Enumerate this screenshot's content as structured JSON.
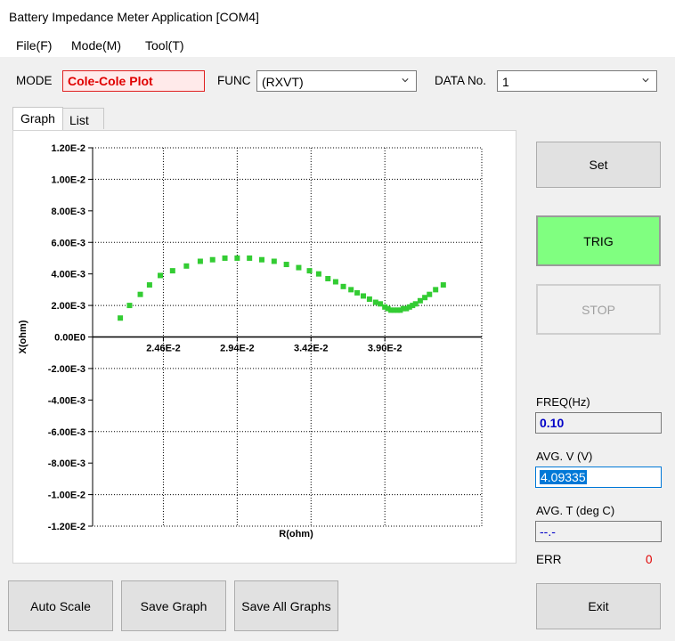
{
  "window": {
    "title": "Battery Impedance Meter Application [COM4]"
  },
  "menu": {
    "items": [
      "File(F)",
      "Mode(M)",
      "Tool(T)"
    ]
  },
  "toolbar": {
    "mode_label": "MODE",
    "mode_value": "Cole-Cole Plot",
    "func_label": "FUNC",
    "func_value": "(RXVT)",
    "data_no_label": "DATA No.",
    "data_no_value": "1"
  },
  "tabs": {
    "graph": "Graph",
    "list": "List"
  },
  "buttons": {
    "set": "Set",
    "trig": "TRIG",
    "stop": "STOP",
    "auto_scale": "Auto Scale",
    "save_graph": "Save Graph",
    "save_all_graphs": "Save All Graphs",
    "exit": "Exit"
  },
  "readouts": {
    "freq_label": "FREQ(Hz)",
    "freq_value": "0.10",
    "avg_v_label": "AVG. V (V)",
    "avg_v_value": "4.09335",
    "avg_t_label": "AVG. T (deg C)",
    "avg_t_value": "--.-",
    "err_label": "ERR",
    "err_value": "0"
  },
  "colors": {
    "trig": "#80ff80",
    "points": "#33cc33",
    "mode_text": "#e00000",
    "err_value": "#e00000"
  },
  "chart_data": {
    "type": "scatter",
    "xlabel": "R(ohm)",
    "ylabel": "X(ohm)",
    "xlim": [
      0.02,
      0.0453
    ],
    "ylim": [
      -0.012,
      0.012
    ],
    "grid": true,
    "x_ticks": [
      0.0246,
      0.0294,
      0.0342,
      0.039
    ],
    "x_tick_labels": [
      "2.46E-2",
      "2.94E-2",
      "3.42E-2",
      "3.90E-2"
    ],
    "y_ticks": [
      0.012,
      0.01,
      0.008,
      0.006,
      0.004,
      0.002,
      0.0,
      -0.002,
      -0.004,
      -0.006,
      -0.008,
      -0.01,
      -0.012
    ],
    "y_tick_labels": [
      "1.20E-2",
      "1.00E-2",
      "8.00E-3",
      "6.00E-3",
      "4.00E-3",
      "2.00E-3",
      "0.00E0",
      "-2.00E-3",
      "-4.00E-3",
      "-6.00E-3",
      "-8.00E-3",
      "-1.00E-2",
      "-1.20E-2"
    ],
    "series": [
      {
        "x": [
          0.0218,
          0.0224,
          0.0231,
          0.0237,
          0.0244,
          0.0252,
          0.0261,
          0.027,
          0.0278,
          0.0286,
          0.0294,
          0.0302,
          0.031,
          0.0318,
          0.0326,
          0.0334,
          0.0341,
          0.0347,
          0.0353,
          0.0358,
          0.0363,
          0.0368,
          0.0372,
          0.0376,
          0.038,
          0.0384,
          0.0387,
          0.039,
          0.0392,
          0.0394,
          0.0396,
          0.0398,
          0.04,
          0.0402,
          0.0404,
          0.0406,
          0.0408,
          0.041,
          0.0413,
          0.0416,
          0.0419,
          0.0423,
          0.0428
        ],
        "y": [
          0.0012,
          0.002,
          0.0027,
          0.0033,
          0.0039,
          0.0042,
          0.0045,
          0.0048,
          0.0049,
          0.005,
          0.005,
          0.005,
          0.0049,
          0.0048,
          0.0046,
          0.0044,
          0.0042,
          0.004,
          0.0037,
          0.0035,
          0.0032,
          0.003,
          0.0028,
          0.0026,
          0.0024,
          0.0022,
          0.0021,
          0.0019,
          0.0018,
          0.0017,
          0.0017,
          0.0017,
          0.0017,
          0.0018,
          0.0018,
          0.0019,
          0.002,
          0.0021,
          0.0023,
          0.0025,
          0.0027,
          0.003,
          0.0033
        ]
      }
    ]
  }
}
